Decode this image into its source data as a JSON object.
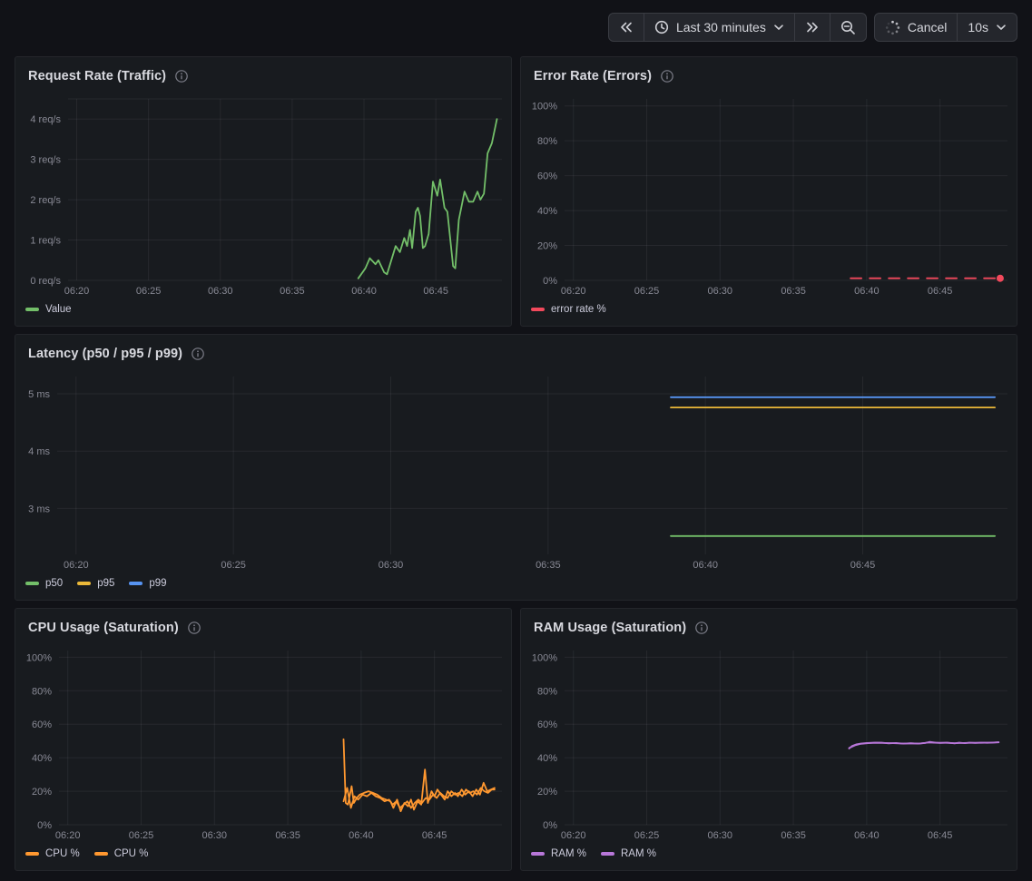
{
  "toolbar": {
    "time_picker": {
      "label": "Last 30 minutes"
    },
    "refresh": {
      "cancel_label": "Cancel",
      "interval": "10s"
    }
  },
  "colors": {
    "green": "#73BF69",
    "red": "#F2495C",
    "yellow": "#EAB839",
    "blue": "#5794F2",
    "orange": "#FF9830",
    "purple": "#B877D9",
    "panel_bg": "#181B1F",
    "page_bg": "#111217"
  },
  "chart_data": [
    {
      "type": "line",
      "title": "Request Rate (Traffic)",
      "xlabel": "",
      "ylabel": "",
      "xlim": [
        19.4,
        49.6
      ],
      "ylim": [
        0,
        4.5
      ],
      "axis_width": 58,
      "x_ticks": [
        {
          "v": 20,
          "label": "06:20"
        },
        {
          "v": 25,
          "label": "06:25"
        },
        {
          "v": 30,
          "label": "06:30"
        },
        {
          "v": 35,
          "label": "06:35"
        },
        {
          "v": 40,
          "label": "06:40"
        },
        {
          "v": 45,
          "label": "06:45"
        }
      ],
      "y_ticks": [
        {
          "v": 0,
          "label": "0 req/s"
        },
        {
          "v": 1,
          "label": "1 req/s"
        },
        {
          "v": 2,
          "label": "2 req/s"
        },
        {
          "v": 3,
          "label": "3 req/s"
        },
        {
          "v": 4,
          "label": "4 req/s"
        },
        {
          "v": 4.5,
          "label": ""
        }
      ],
      "series": [
        {
          "name": "Value",
          "color": "#73BF69",
          "points": [
            [
              39.6,
              0.05
            ],
            [
              40.1,
              0.3
            ],
            [
              40.4,
              0.55
            ],
            [
              40.8,
              0.4
            ],
            [
              41.0,
              0.5
            ],
            [
              41.4,
              0.2
            ],
            [
              41.6,
              0.15
            ],
            [
              42.2,
              0.85
            ],
            [
              42.5,
              0.7
            ],
            [
              42.8,
              1.05
            ],
            [
              43.0,
              0.85
            ],
            [
              43.2,
              1.25
            ],
            [
              43.35,
              0.8
            ],
            [
              43.6,
              1.7
            ],
            [
              43.75,
              1.8
            ],
            [
              43.9,
              1.6
            ],
            [
              44.1,
              0.8
            ],
            [
              44.25,
              0.85
            ],
            [
              44.5,
              1.15
            ],
            [
              44.8,
              2.45
            ],
            [
              45.1,
              2.1
            ],
            [
              45.3,
              2.5
            ],
            [
              45.6,
              1.8
            ],
            [
              45.8,
              1.7
            ],
            [
              46.2,
              0.35
            ],
            [
              46.35,
              0.3
            ],
            [
              46.6,
              1.5
            ],
            [
              47.0,
              2.2
            ],
            [
              47.3,
              1.95
            ],
            [
              47.6,
              1.95
            ],
            [
              47.9,
              2.2
            ],
            [
              48.1,
              2.0
            ],
            [
              48.35,
              2.15
            ],
            [
              48.6,
              3.15
            ],
            [
              48.9,
              3.4
            ],
            [
              49.25,
              4.0
            ]
          ]
        }
      ]
    },
    {
      "type": "line",
      "title": "Error Rate (Errors)",
      "xlabel": "",
      "ylabel": "",
      "xlim": [
        19.4,
        49.6
      ],
      "ylim": [
        0,
        104
      ],
      "axis_width": 48,
      "x_ticks": [
        {
          "v": 20,
          "label": "06:20"
        },
        {
          "v": 25,
          "label": "06:25"
        },
        {
          "v": 30,
          "label": "06:30"
        },
        {
          "v": 35,
          "label": "06:35"
        },
        {
          "v": 40,
          "label": "06:40"
        },
        {
          "v": 45,
          "label": "06:45"
        }
      ],
      "y_ticks": [
        {
          "v": 0,
          "label": "0%"
        },
        {
          "v": 20,
          "label": "20%"
        },
        {
          "v": 40,
          "label": "40%"
        },
        {
          "v": 60,
          "label": "60%"
        },
        {
          "v": 80,
          "label": "80%"
        },
        {
          "v": 100,
          "label": "100%"
        }
      ],
      "series": [
        {
          "name": "error rate %",
          "color": "#F2495C",
          "dash": true,
          "end_dot": true,
          "points": [
            [
              38.9,
              1.2
            ],
            [
              49.1,
              1.2
            ]
          ]
        }
      ]
    },
    {
      "type": "line",
      "title": "Latency (p50 / p95 / p99)",
      "xlabel": "",
      "ylabel": "",
      "xlim": [
        19.4,
        49.6
      ],
      "ylim": [
        2.2,
        5.3
      ],
      "axis_width": 46,
      "x_ticks": [
        {
          "v": 20,
          "label": "06:20"
        },
        {
          "v": 25,
          "label": "06:25"
        },
        {
          "v": 30,
          "label": "06:30"
        },
        {
          "v": 35,
          "label": "06:35"
        },
        {
          "v": 40,
          "label": "06:40"
        },
        {
          "v": 45,
          "label": "06:45"
        }
      ],
      "y_ticks": [
        {
          "v": 3,
          "label": "3 ms"
        },
        {
          "v": 4,
          "label": "4 ms"
        },
        {
          "v": 5,
          "label": "5 ms"
        }
      ],
      "series": [
        {
          "name": "p50",
          "color": "#73BF69",
          "points": [
            [
              38.9,
              2.52
            ],
            [
              49.2,
              2.52
            ]
          ]
        },
        {
          "name": "p95",
          "color": "#EAB839",
          "points": [
            [
              38.9,
              4.76
            ],
            [
              49.2,
              4.76
            ]
          ]
        },
        {
          "name": "p99",
          "color": "#5794F2",
          "points": [
            [
              38.9,
              4.94
            ],
            [
              49.2,
              4.94
            ]
          ]
        }
      ]
    },
    {
      "type": "line",
      "title": "CPU Usage (Saturation)",
      "xlabel": "",
      "ylabel": "",
      "xlim": [
        19.4,
        49.6
      ],
      "ylim": [
        0,
        104
      ],
      "axis_width": 48,
      "x_ticks": [
        {
          "v": 20,
          "label": "06:20"
        },
        {
          "v": 25,
          "label": "06:25"
        },
        {
          "v": 30,
          "label": "06:30"
        },
        {
          "v": 35,
          "label": "06:35"
        },
        {
          "v": 40,
          "label": "06:40"
        },
        {
          "v": 45,
          "label": "06:45"
        }
      ],
      "y_ticks": [
        {
          "v": 0,
          "label": "0%"
        },
        {
          "v": 20,
          "label": "20%"
        },
        {
          "v": 40,
          "label": "40%"
        },
        {
          "v": 60,
          "label": "60%"
        },
        {
          "v": 80,
          "label": "80%"
        },
        {
          "v": 100,
          "label": "100%"
        }
      ],
      "series": [
        {
          "name": "CPU %",
          "color": "#FF9830",
          "points": [
            [
              38.8,
              51
            ],
            [
              38.95,
              13
            ],
            [
              39.1,
              12
            ],
            [
              39.35,
              23
            ],
            [
              39.5,
              13
            ],
            [
              39.7,
              16
            ],
            [
              39.9,
              18
            ],
            [
              40.2,
              19
            ],
            [
              40.5,
              20
            ],
            [
              40.8,
              19
            ],
            [
              41.1,
              18
            ],
            [
              41.4,
              16
            ],
            [
              41.7,
              15
            ],
            [
              42.0,
              14
            ],
            [
              42.2,
              10
            ],
            [
              42.45,
              15
            ],
            [
              42.7,
              8
            ],
            [
              42.95,
              13
            ],
            [
              43.2,
              11
            ],
            [
              43.4,
              15
            ],
            [
              43.6,
              9
            ],
            [
              43.85,
              14
            ],
            [
              44.1,
              12
            ],
            [
              44.35,
              33
            ],
            [
              44.55,
              13
            ],
            [
              44.8,
              20
            ],
            [
              45.0,
              17
            ],
            [
              45.2,
              21
            ],
            [
              45.45,
              18
            ],
            [
              45.7,
              15
            ],
            [
              45.9,
              20
            ],
            [
              46.15,
              17
            ],
            [
              46.4,
              19
            ],
            [
              46.6,
              17
            ],
            [
              46.85,
              21
            ],
            [
              47.1,
              18
            ],
            [
              47.35,
              20
            ],
            [
              47.6,
              17
            ],
            [
              47.85,
              21
            ],
            [
              48.1,
              18
            ],
            [
              48.35,
              25
            ],
            [
              48.6,
              20
            ],
            [
              48.85,
              21
            ],
            [
              49.1,
              22
            ]
          ]
        },
        {
          "name": "CPU %",
          "color": "#FF9830",
          "points": [
            [
              38.8,
              14
            ],
            [
              39.05,
              22
            ],
            [
              39.3,
              10
            ],
            [
              39.55,
              17
            ],
            [
              39.8,
              15
            ],
            [
              40.1,
              18
            ],
            [
              40.4,
              17
            ],
            [
              40.7,
              19
            ],
            [
              41.0,
              17
            ],
            [
              41.3,
              16
            ],
            [
              41.6,
              14
            ],
            [
              41.9,
              15
            ],
            [
              42.15,
              12
            ],
            [
              42.4,
              14
            ],
            [
              42.65,
              10
            ],
            [
              42.9,
              12
            ],
            [
              43.15,
              14
            ],
            [
              43.4,
              10
            ],
            [
              43.65,
              13
            ],
            [
              43.9,
              15
            ],
            [
              44.15,
              13
            ],
            [
              44.4,
              16
            ],
            [
              44.65,
              15
            ],
            [
              44.9,
              18
            ],
            [
              45.15,
              16
            ],
            [
              45.4,
              19
            ],
            [
              45.65,
              17
            ],
            [
              45.9,
              16
            ],
            [
              46.15,
              20
            ],
            [
              46.4,
              18
            ],
            [
              46.65,
              19
            ],
            [
              46.9,
              17
            ],
            [
              47.15,
              21
            ],
            [
              47.4,
              19
            ],
            [
              47.65,
              20
            ],
            [
              47.9,
              18
            ],
            [
              48.15,
              22
            ],
            [
              48.4,
              20
            ],
            [
              48.65,
              19
            ],
            [
              48.9,
              21
            ],
            [
              49.1,
              21
            ]
          ]
        }
      ]
    },
    {
      "type": "line",
      "title": "RAM Usage (Saturation)",
      "xlabel": "",
      "ylabel": "",
      "xlim": [
        19.4,
        49.6
      ],
      "ylim": [
        0,
        104
      ],
      "axis_width": 48,
      "x_ticks": [
        {
          "v": 20,
          "label": "06:20"
        },
        {
          "v": 25,
          "label": "06:25"
        },
        {
          "v": 30,
          "label": "06:30"
        },
        {
          "v": 35,
          "label": "06:35"
        },
        {
          "v": 40,
          "label": "06:40"
        },
        {
          "v": 45,
          "label": "06:45"
        }
      ],
      "y_ticks": [
        {
          "v": 0,
          "label": "0%"
        },
        {
          "v": 20,
          "label": "20%"
        },
        {
          "v": 40,
          "label": "40%"
        },
        {
          "v": 60,
          "label": "60%"
        },
        {
          "v": 80,
          "label": "80%"
        },
        {
          "v": 100,
          "label": "100%"
        }
      ],
      "series": [
        {
          "name": "RAM %",
          "color": "#B877D9",
          "points": [
            [
              38.8,
              45.5
            ],
            [
              39.0,
              47.0
            ],
            [
              39.3,
              48.0
            ],
            [
              39.6,
              48.5
            ],
            [
              40.0,
              48.8
            ],
            [
              40.5,
              49.0
            ],
            [
              41.0,
              49.0
            ],
            [
              41.5,
              48.6
            ],
            [
              42.0,
              48.8
            ],
            [
              42.5,
              48.4
            ],
            [
              43.0,
              48.7
            ],
            [
              43.5,
              48.4
            ],
            [
              44.0,
              48.8
            ],
            [
              44.3,
              49.5
            ],
            [
              44.7,
              49.0
            ],
            [
              45.0,
              48.8
            ],
            [
              45.5,
              49.0
            ],
            [
              46.0,
              48.6
            ],
            [
              46.3,
              49.0
            ],
            [
              46.7,
              48.7
            ],
            [
              47.0,
              49.0
            ],
            [
              47.4,
              48.8
            ],
            [
              47.8,
              49.0
            ],
            [
              48.2,
              48.9
            ],
            [
              48.6,
              49.0
            ],
            [
              49.0,
              49.3
            ]
          ]
        },
        {
          "name": "RAM %",
          "color": "#B877D9",
          "points": [
            [
              38.8,
              45.8
            ],
            [
              39.2,
              47.4
            ],
            [
              39.6,
              48.3
            ],
            [
              40.1,
              48.7
            ],
            [
              40.6,
              48.9
            ],
            [
              41.2,
              48.8
            ],
            [
              41.8,
              48.7
            ],
            [
              42.4,
              48.5
            ],
            [
              43.0,
              48.6
            ],
            [
              43.6,
              48.5
            ],
            [
              44.2,
              49.1
            ],
            [
              44.8,
              48.9
            ],
            [
              45.4,
              48.9
            ],
            [
              46.0,
              48.7
            ],
            [
              46.6,
              48.8
            ],
            [
              47.2,
              48.9
            ],
            [
              47.8,
              48.9
            ],
            [
              48.4,
              49.0
            ],
            [
              49.0,
              49.2
            ]
          ]
        }
      ]
    }
  ]
}
